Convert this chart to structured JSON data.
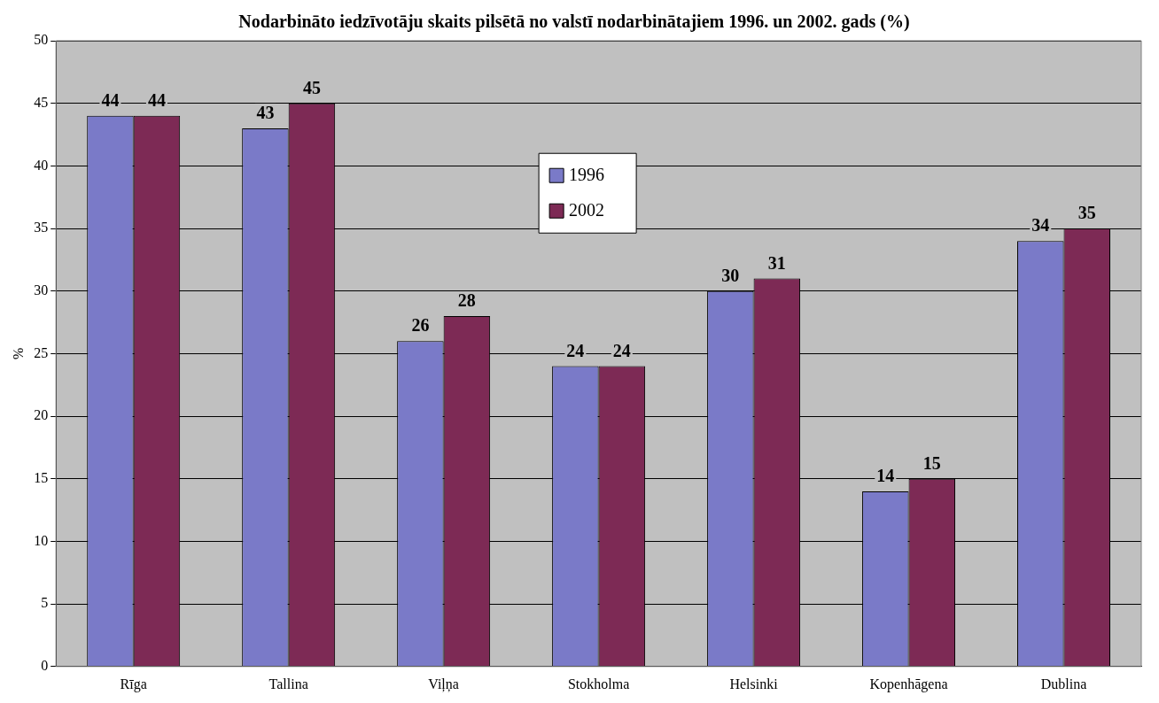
{
  "chart_data": {
    "type": "bar",
    "title": "Nodarbināto iedzīvotāju skaits pilsētā no valstī nodarbinātajiem 1996. un 2002. gads (%)",
    "ylabel": "%",
    "categories": [
      "Rīga",
      "Tallina",
      "Viļņa",
      "Stokholma",
      "Helsinki",
      "Kopenhāgena",
      "Dublina"
    ],
    "series": [
      {
        "name": "1996",
        "color": "#7a7ac8",
        "values": [
          44,
          43,
          26,
          24,
          30,
          14,
          34
        ]
      },
      {
        "name": "2002",
        "color": "#7d2a55",
        "values": [
          44,
          45,
          28,
          24,
          31,
          15,
          35
        ]
      }
    ],
    "ylim": [
      0,
      50
    ],
    "yticks": [
      0,
      5,
      10,
      15,
      20,
      25,
      30,
      35,
      40,
      45,
      50
    ],
    "grid": "y",
    "legend": "top",
    "data_labels": true
  }
}
